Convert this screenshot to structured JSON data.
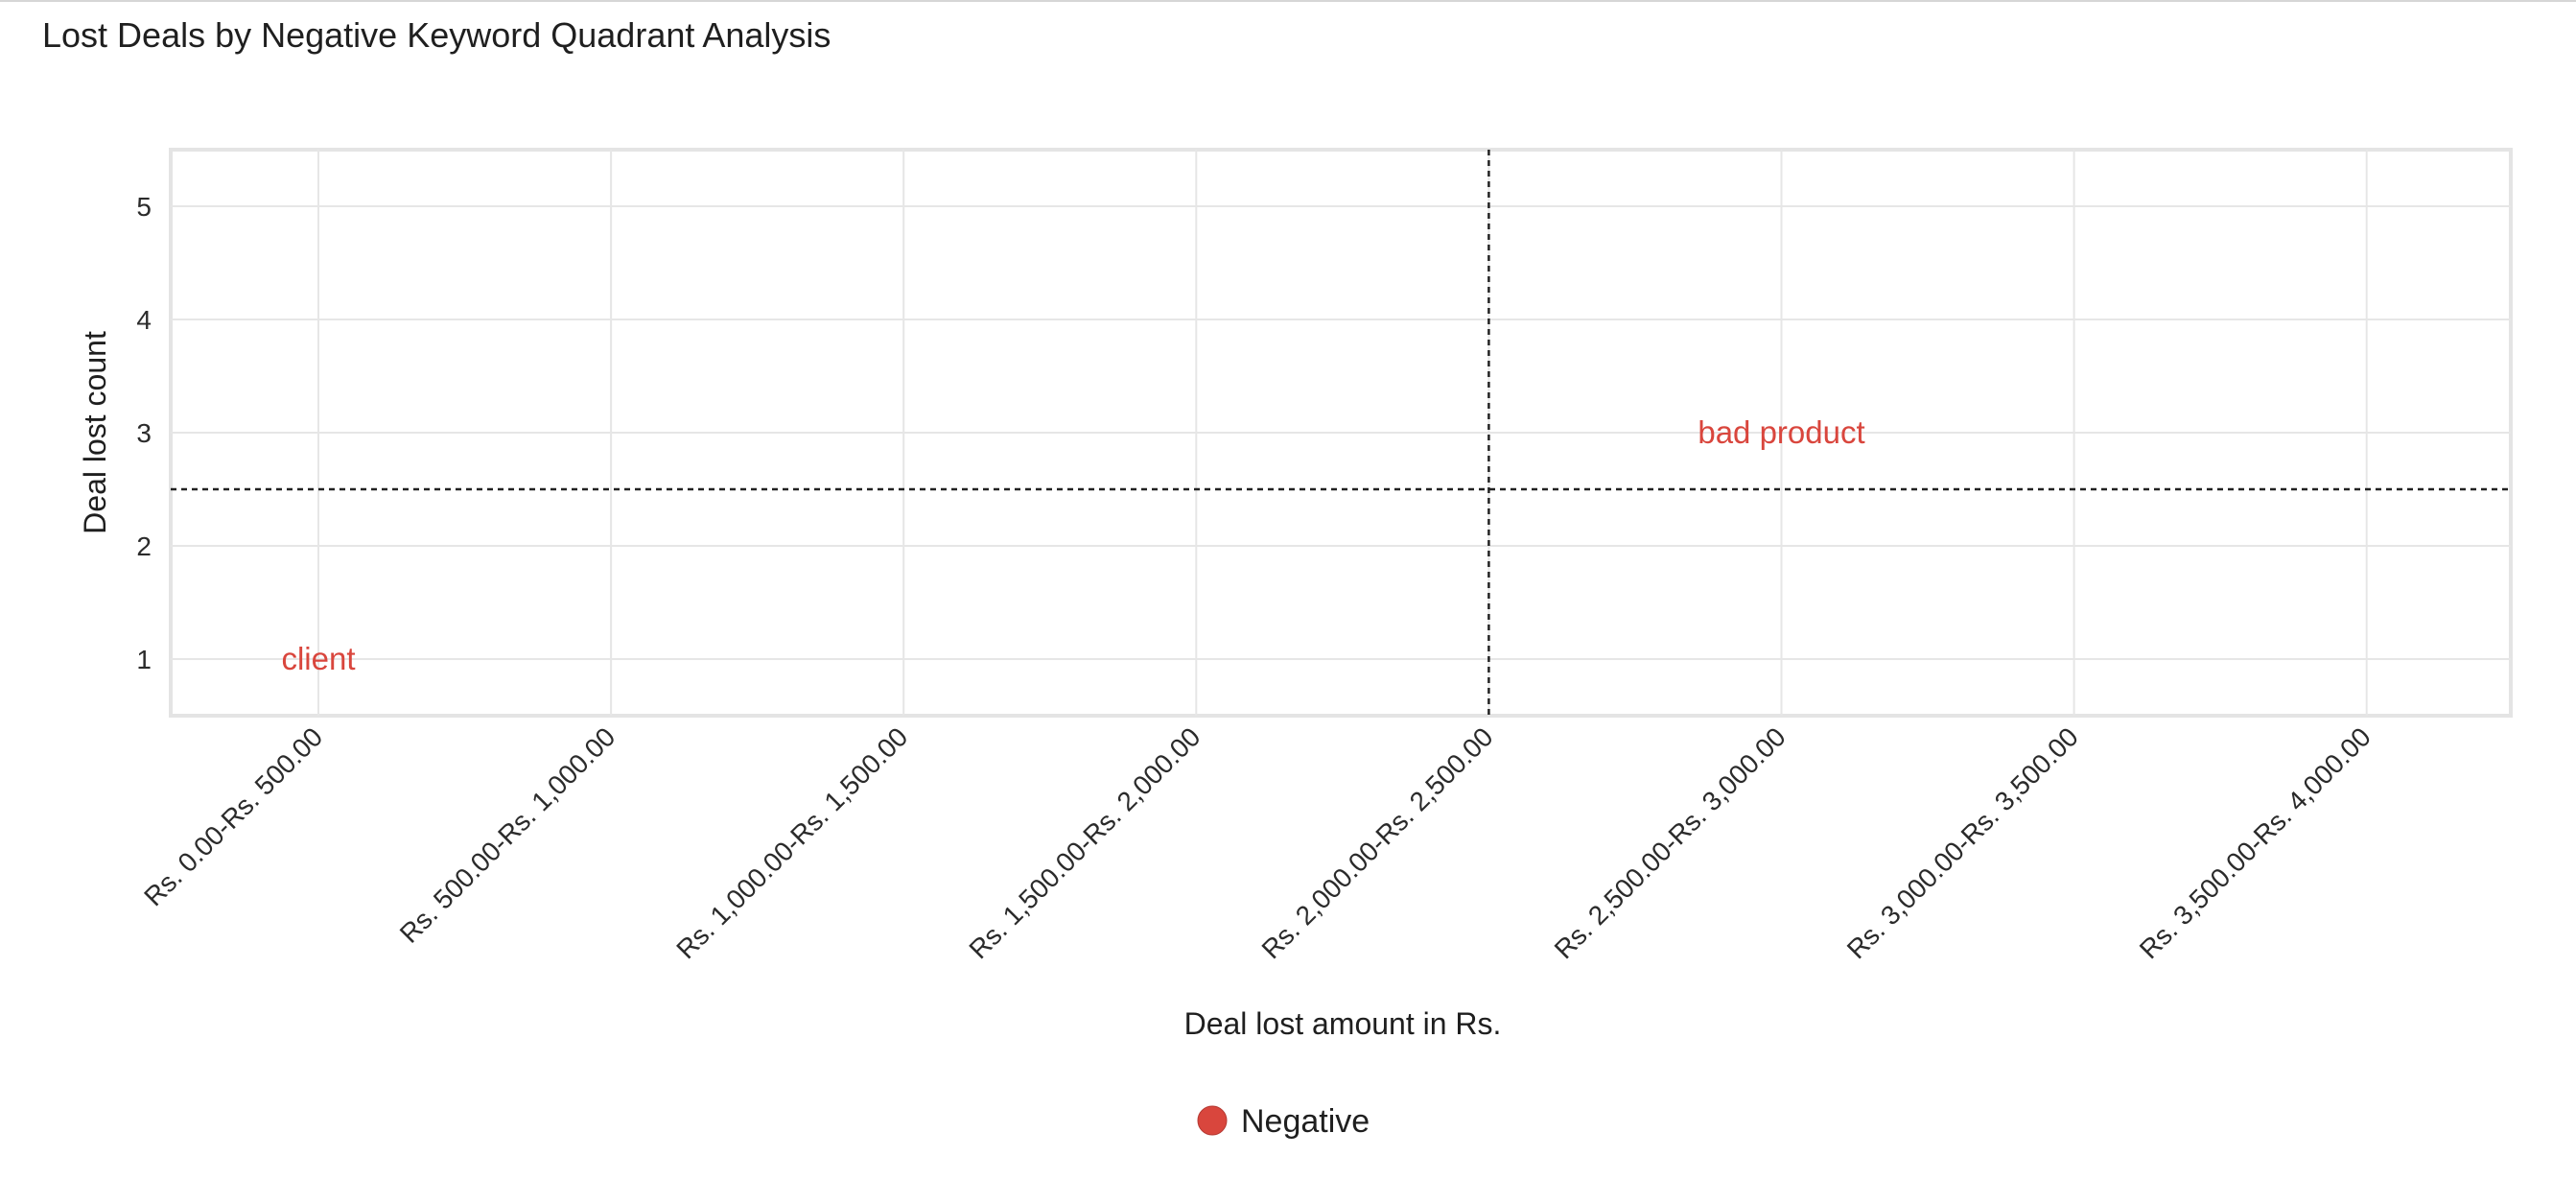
{
  "chart_data": {
    "type": "scatter",
    "title": "Lost Deals by Negative Keyword Quadrant Analysis",
    "xlabel": "Deal lost amount in Rs.",
    "ylabel": "Deal lost count",
    "categories": [
      "Rs. 0.00-Rs. 500.00",
      "Rs. 500.00-Rs. 1,000.00",
      "Rs. 1,000.00-Rs. 1,500.00",
      "Rs. 1,500.00-Rs. 2,000.00",
      "Rs. 2,000.00-Rs. 2,500.00",
      "Rs. 2,500.00-Rs. 3,000.00",
      "Rs. 3,000.00-Rs. 3,500.00",
      "Rs. 3,500.00-Rs. 4,000.00"
    ],
    "yticks": [
      1,
      2,
      3,
      4,
      5
    ],
    "ylim": [
      0.5,
      5.5
    ],
    "grid": true,
    "quadrant_lines": {
      "x_category": "Rs. 2,000.00-Rs. 2,500.00",
      "y": 2.5
    },
    "series": [
      {
        "name": "Negative",
        "color": "#d9463d",
        "points": [
          {
            "category": "Rs. 0.00-Rs. 500.00",
            "y": 1,
            "label": "client"
          },
          {
            "category": "Rs. 2,500.00-Rs. 3,000.00",
            "y": 3,
            "label": "bad product"
          }
        ]
      }
    ],
    "legend": {
      "position": "bottom",
      "items": [
        "Negative"
      ]
    }
  }
}
